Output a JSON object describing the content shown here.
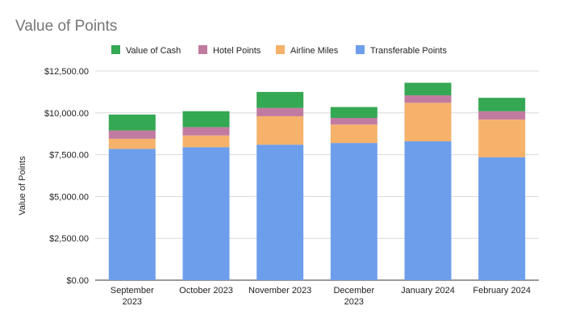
{
  "chart_data": {
    "type": "bar",
    "stacked": true,
    "title": "Value of Points",
    "xlabel": "",
    "ylabel": "Value of Points",
    "ylim": [
      0,
      12500
    ],
    "yticks": [
      0,
      2500,
      5000,
      7500,
      10000,
      12500
    ],
    "ytick_labels": [
      "$0.00",
      "$2,500.00",
      "$5,000.00",
      "$7,500.00",
      "$10,000.00",
      "$12,500.00"
    ],
    "grid": true,
    "legend_position": "top",
    "categories": [
      [
        "September",
        "2023"
      ],
      [
        "October 2023"
      ],
      [
        "November 2023"
      ],
      [
        "December",
        "2023"
      ],
      [
        "January 2024"
      ],
      [
        "February 2024"
      ]
    ],
    "legend_order": [
      "Value of Cash",
      "Hotel Points",
      "Airline Miles",
      "Transferable Points"
    ],
    "series": [
      {
        "name": "Transferable Points",
        "color": "#6d9eeb",
        "values": [
          7850,
          7950,
          8100,
          8200,
          8300,
          7350
        ]
      },
      {
        "name": "Airline Miles",
        "color": "#f6b26b",
        "values": [
          600,
          700,
          1700,
          1100,
          2300,
          2250
        ]
      },
      {
        "name": "Hotel Points",
        "color": "#c27ba0",
        "values": [
          500,
          500,
          500,
          400,
          450,
          500
        ]
      },
      {
        "name": "Value of Cash",
        "color": "#34a853",
        "values": [
          950,
          950,
          950,
          650,
          750,
          800
        ]
      }
    ]
  }
}
